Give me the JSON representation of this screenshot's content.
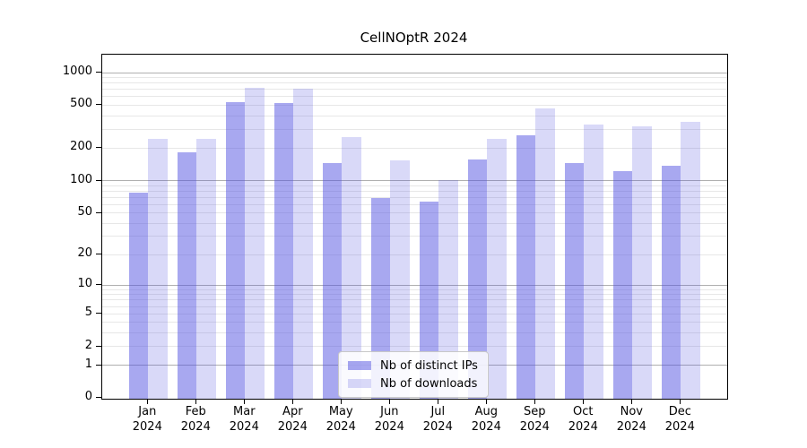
{
  "title": "CellNOptR 2024",
  "chart_data": {
    "type": "bar",
    "title": "CellNOptR 2024",
    "categories": [
      "Jan",
      "Feb",
      "Mar",
      "Apr",
      "May",
      "Jun",
      "Jul",
      "Aug",
      "Sep",
      "Oct",
      "Nov",
      "Dec"
    ],
    "year": "2024",
    "series": [
      {
        "name": "Nb of distinct IPs",
        "color": "#4d4de0",
        "alpha": 0.49,
        "solid_color": "#a8a8f0",
        "values": [
          78,
          183,
          530,
          528,
          146,
          69,
          64,
          158,
          264,
          146,
          123,
          138
        ]
      },
      {
        "name": "Nb of downloads",
        "color": "#4d4de0",
        "alpha": 0.21,
        "solid_color": "#dadaf8",
        "values": [
          242,
          242,
          728,
          712,
          252,
          154,
          102,
          246,
          470,
          333,
          320,
          352
        ]
      }
    ],
    "yscale": "log1p",
    "ylim": [
      0,
      1465
    ],
    "xlabel": "",
    "ylabel": "",
    "y_tick_values": [
      0,
      1,
      2,
      5,
      10,
      20,
      50,
      100,
      200,
      500,
      1000
    ],
    "grid": "on",
    "grid_major_values": [
      1,
      10,
      100,
      1000
    ],
    "grid_major_color": "#b0b0b0",
    "grid_minor_color": "#e7e7e7",
    "axis_color": "#000000",
    "legend_position": "inside-bottom-center"
  }
}
